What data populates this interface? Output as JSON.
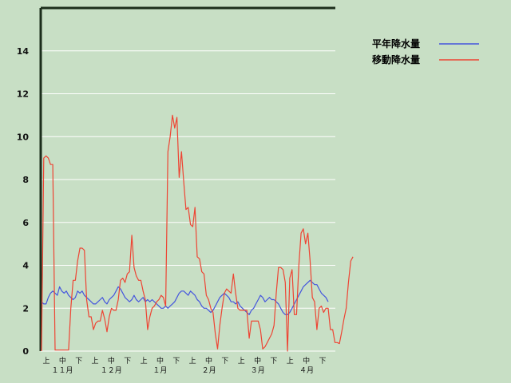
{
  "chart_data": {
    "type": "line",
    "ylim": [
      0,
      16
    ],
    "yticks": [
      0,
      2,
      4,
      6,
      8,
      10,
      12,
      14
    ],
    "x_period_labels": [
      "上",
      "中",
      "下",
      "上",
      "中",
      "下",
      "上",
      "中",
      "下",
      "上",
      "中",
      "下",
      "上",
      "中",
      "下",
      "上",
      "中",
      "下"
    ],
    "x_month_labels": [
      "１１月",
      "１２月",
      "１月",
      "２月",
      "３月",
      "４月"
    ],
    "legend_position": "top-right",
    "grid": true,
    "series": [
      {
        "name": "平年降水量",
        "color": "#4455dd",
        "values": [
          2.3,
          2.2,
          2.2,
          2.5,
          2.7,
          2.8,
          2.7,
          2.6,
          3.0,
          2.8,
          2.7,
          2.8,
          2.6,
          2.5,
          2.4,
          2.5,
          2.8,
          2.7,
          2.8,
          2.6,
          2.5,
          2.4,
          2.3,
          2.2,
          2.2,
          2.3,
          2.4,
          2.5,
          2.3,
          2.2,
          2.4,
          2.5,
          2.6,
          2.8,
          3.0,
          2.9,
          2.7,
          2.5,
          2.4,
          2.3,
          2.4,
          2.6,
          2.4,
          2.3,
          2.4,
          2.5,
          2.3,
          2.4,
          2.3,
          2.4,
          2.3,
          2.2,
          2.1,
          2.0,
          2.0,
          2.1,
          2.0,
          2.1,
          2.2,
          2.3,
          2.5,
          2.7,
          2.8,
          2.8,
          2.7,
          2.6,
          2.8,
          2.7,
          2.6,
          2.4,
          2.3,
          2.1,
          2.0,
          2.0,
          1.9,
          1.8,
          1.9,
          2.1,
          2.3,
          2.5,
          2.6,
          2.7,
          2.6,
          2.5,
          2.3,
          2.3,
          2.2,
          2.3,
          2.1,
          2.0,
          1.9,
          1.8,
          1.7,
          1.9,
          2.0,
          2.2,
          2.4,
          2.6,
          2.5,
          2.3,
          2.4,
          2.5,
          2.4,
          2.4,
          2.3,
          2.2,
          2.0,
          1.8,
          1.7,
          1.7,
          1.8,
          2.0,
          2.2,
          2.4,
          2.6,
          2.8,
          3.0,
          3.1,
          3.2,
          3.3,
          3.2,
          3.1,
          3.1,
          2.9,
          2.7,
          2.6,
          2.5,
          2.3
        ]
      },
      {
        "name": "移動降水量",
        "color": "#ee4433",
        "values": [
          0.0,
          9.0,
          9.1,
          9.0,
          8.7,
          8.7,
          0.05,
          0.05,
          0.05,
          0.05,
          0.05,
          0.05,
          0.05,
          2.0,
          3.3,
          3.3,
          4.2,
          4.8,
          4.8,
          4.7,
          2.4,
          1.6,
          1.6,
          1.0,
          1.3,
          1.4,
          1.4,
          1.9,
          1.5,
          0.9,
          1.6,
          2.0,
          1.9,
          1.9,
          2.4,
          3.3,
          3.4,
          3.2,
          3.6,
          3.7,
          5.4,
          3.9,
          3.5,
          3.3,
          3.3,
          2.8,
          2.4,
          1.0,
          1.6,
          2.0,
          2.1,
          2.3,
          2.4,
          2.6,
          2.5,
          2.1,
          9.3,
          10.0,
          11.0,
          10.4,
          10.9,
          8.1,
          9.3,
          7.9,
          6.6,
          6.7,
          5.9,
          5.8,
          6.7,
          4.4,
          4.3,
          3.7,
          3.6,
          2.6,
          2.4,
          2.0,
          1.8,
          0.8,
          0.1,
          1.2,
          2.0,
          2.7,
          2.9,
          2.8,
          2.7,
          3.6,
          2.7,
          2.0,
          1.9,
          1.9,
          1.9,
          1.9,
          0.6,
          1.4,
          1.4,
          1.4,
          1.4,
          1.0,
          0.1,
          0.2,
          0.4,
          0.6,
          0.8,
          1.2,
          2.7,
          3.9,
          3.9,
          3.8,
          3.2,
          0.0,
          3.4,
          3.8,
          1.7,
          1.7,
          4.0,
          5.5,
          5.7,
          5.0,
          5.5,
          4.2,
          2.5,
          2.3,
          1.0,
          2.0,
          2.1,
          1.8,
          2.0,
          2.0,
          1.0,
          1.0,
          0.4,
          0.4,
          0.35,
          0.9,
          1.5,
          2.0,
          3.2,
          4.2,
          4.4
        ]
      }
    ]
  }
}
